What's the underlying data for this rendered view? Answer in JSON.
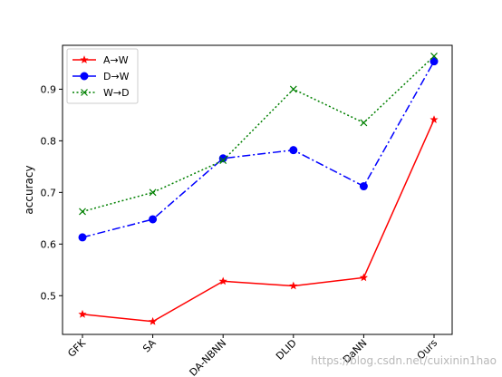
{
  "chart_data": {
    "type": "line",
    "title": "",
    "xlabel": "",
    "ylabel": "accuracy",
    "categories": [
      "GFK",
      "SA",
      "DA-NBNN",
      "DLID",
      "DaNN",
      "Ours"
    ],
    "ylim": [
      0.425,
      0.985
    ],
    "yticks": [
      0.5,
      0.6,
      0.7,
      0.8,
      0.9
    ],
    "ytick_labels": [
      "0.5",
      "0.6",
      "0.7",
      "0.8",
      "0.9"
    ],
    "grid": false,
    "legend_position": "top-left",
    "series": [
      {
        "name": "A→W",
        "values": [
          0.464,
          0.45,
          0.528,
          0.519,
          0.535,
          0.841
        ],
        "color": "#ff0000",
        "linestyle": "solid",
        "marker": "star"
      },
      {
        "name": "D→W",
        "values": [
          0.613,
          0.648,
          0.766,
          0.782,
          0.712,
          0.954
        ],
        "color": "#0000ff",
        "linestyle": "dashdot",
        "marker": "circle"
      },
      {
        "name": "W→D",
        "values": [
          0.663,
          0.7,
          0.762,
          0.9,
          0.835,
          0.964
        ],
        "color": "#008000",
        "linestyle": "dotted",
        "marker": "x"
      }
    ]
  },
  "watermark": "https://blog.csdn.net/cuixinin1hao"
}
